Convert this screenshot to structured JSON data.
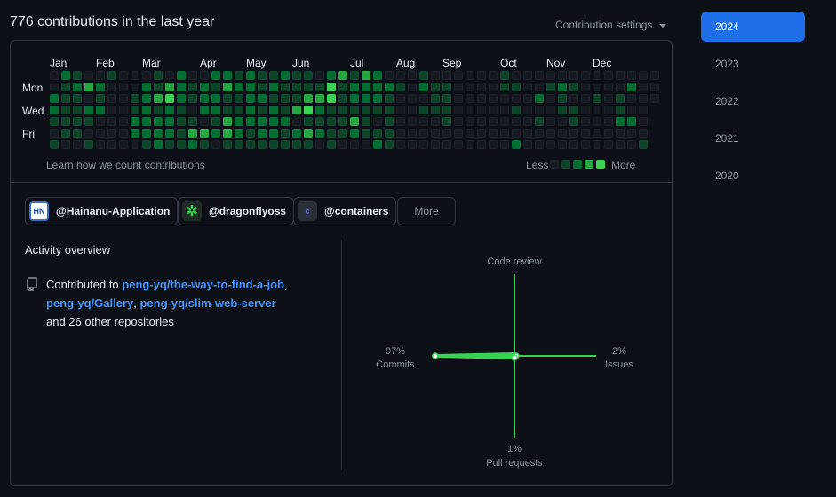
{
  "header": {
    "title": "776 contributions in the last year",
    "settings_label": "Contribution settings"
  },
  "years": [
    "2024",
    "2023",
    "2022",
    "2021",
    "2020"
  ],
  "selected_year": "2024",
  "calendar": {
    "months": [
      "Jan",
      "Feb",
      "Mar",
      "Apr",
      "May",
      "Jun",
      "Jul",
      "Aug",
      "Sep",
      "Oct",
      "Nov",
      "Dec"
    ],
    "days": [
      "Mon",
      "Wed",
      "Fri"
    ],
    "colors": [
      "#161b22",
      "#0e4429",
      "#006d32",
      "#26a641",
      "#39d353"
    ],
    "levels_by_weekday": [
      "02100100010200221211211023132000100000010000000000000",
      "01232000213212132212111141222210211000011001210000200",
      "21101001234212211221113341222100011000000020100101000",
      "2112200121210221121213421111110011100000100011000100-",
      "1111000222211013222220111131010000100000001001000220-",
      "0110000222213323212212321121110000000000000000000000-",
      "1001000012112101111111101000210000000000200000000001-"
    ],
    "learn_link": "Learn how we count contributions",
    "legend_less": "Less",
    "legend_more": "More"
  },
  "orgs": [
    {
      "name": "@Hainanu-Application",
      "icon": "HN"
    },
    {
      "name": "@dragonflyoss",
      "icon": "✲"
    },
    {
      "name": "@containers",
      "icon": "c"
    }
  ],
  "more_button": "More",
  "activity": {
    "title": "Activity overview",
    "prefix": "Contributed to ",
    "repos": [
      "peng-yq/the-way-to-find-a-job",
      "peng-yq/Gallery",
      "peng-yq/slim-web-server"
    ],
    "suffix": "and 26 other repositories"
  },
  "chart_data": {
    "type": "radar",
    "axes": [
      {
        "label": "Code review",
        "value": 0,
        "shown": ""
      },
      {
        "label": "Issues",
        "value": 2,
        "shown": "2%"
      },
      {
        "label": "Pull requests",
        "value": 1,
        "shown": "1%"
      },
      {
        "label": "Commits",
        "value": 97,
        "shown": "97%"
      }
    ],
    "max": 100,
    "color": "#39d353"
  }
}
